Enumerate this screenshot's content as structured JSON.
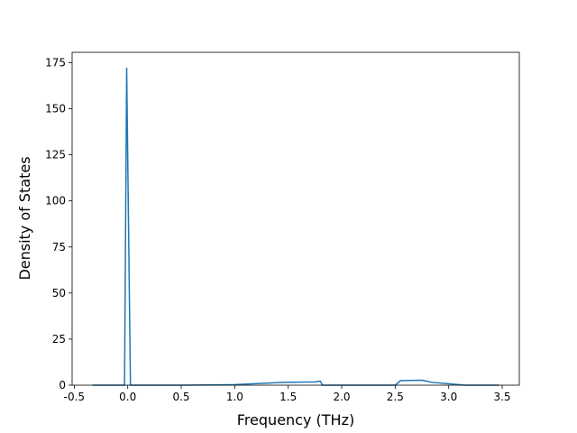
{
  "chart_data": {
    "type": "line",
    "x_label": "Frequency (THz)",
    "y_label": "Density of States",
    "x": [
      -0.33,
      -0.03,
      -0.01,
      0.025,
      0.5,
      1.0,
      1.45,
      1.75,
      1.8,
      1.82,
      2.5,
      2.55,
      2.75,
      2.85,
      3.0,
      3.15,
      3.47
    ],
    "series": [
      {
        "color": "#1f77b4",
        "values": [
          0,
          0,
          172,
          0,
          0,
          0.3,
          1.5,
          1.8,
          2.2,
          0,
          0,
          2.5,
          2.7,
          1.5,
          0.8,
          0,
          0
        ]
      }
    ],
    "xlim": [
      -0.52,
      3.66
    ],
    "ylim": [
      0,
      180.6
    ],
    "xticks": [
      -0.5,
      {
        "value": 0,
        "label": "0.0"
      },
      0.5,
      {
        "value": 1,
        "label": "1.0"
      },
      1.5,
      {
        "value": 2,
        "label": "2.0"
      },
      2.5,
      {
        "value": 3,
        "label": "3.0"
      },
      3.5
    ],
    "yticks": [
      0,
      25,
      50,
      75,
      100,
      125,
      150,
      175
    ]
  }
}
